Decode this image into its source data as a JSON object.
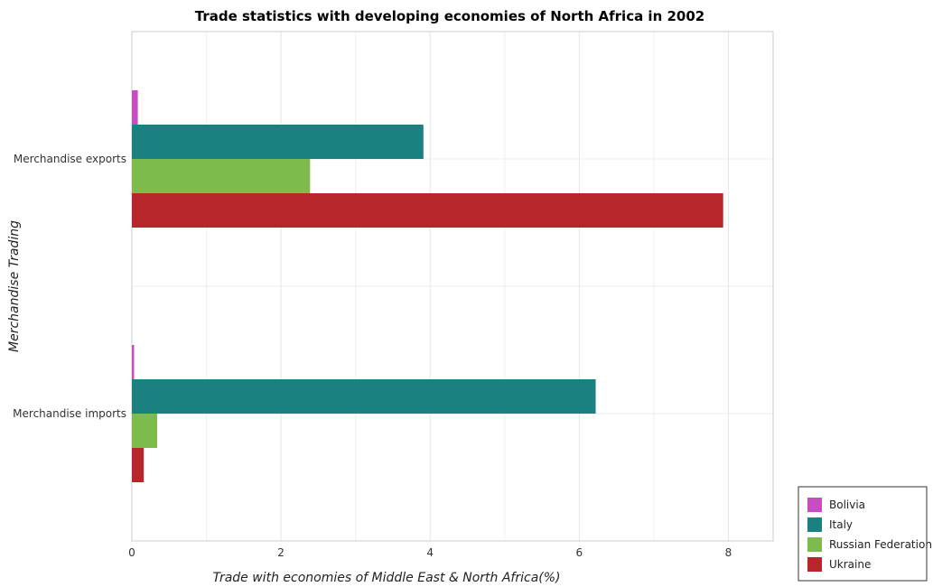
{
  "chart_data": {
    "type": "bar",
    "orientation": "horizontal",
    "title": "Trade statistics with developing economies of North Africa in 2002",
    "xlabel": "Trade with economies of Middle East & North Africa(%)",
    "ylabel": "Merchandise Trading",
    "xlim": [
      0,
      8.6
    ],
    "xticks": [
      0,
      2,
      4,
      6,
      8
    ],
    "grid": true,
    "legend_position": "bottom-right",
    "categories": [
      "Merchandise exports",
      "Merchandise imports"
    ],
    "series": [
      {
        "name": "Bolivia",
        "color": "#c64ec2",
        "values": [
          0.08,
          0.03
        ]
      },
      {
        "name": "Italy",
        "color": "#1a8080",
        "values": [
          3.91,
          6.22
        ]
      },
      {
        "name": "Russian Federation",
        "color": "#7dbb4c",
        "values": [
          2.39,
          0.34
        ]
      },
      {
        "name": "Ukraine",
        "color": "#b7262a",
        "values": [
          7.93,
          0.16
        ]
      }
    ]
  }
}
